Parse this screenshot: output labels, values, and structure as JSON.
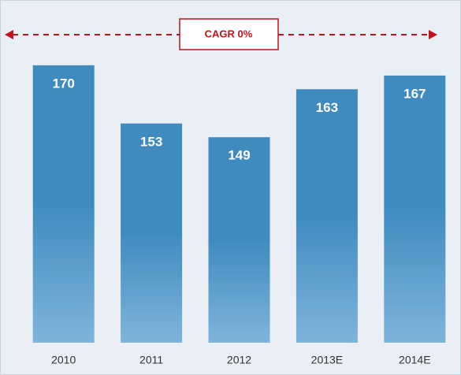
{
  "chart_data": {
    "type": "bar",
    "annotation": "CAGR 0%",
    "categories": [
      "2010",
      "2011",
      "2012",
      "2013E",
      "2014E"
    ],
    "values": [
      170,
      153,
      149,
      163,
      167
    ],
    "color": "#3f8bc0",
    "annotation_color": "#c0141c",
    "ylim": [
      89,
      184
    ],
    "grid": false
  }
}
